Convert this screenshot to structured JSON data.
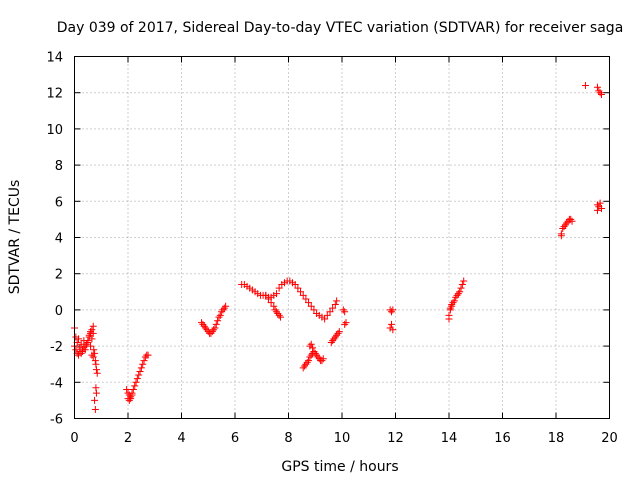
{
  "chart_data": {
    "type": "scatter",
    "title": "Day 039 of 2017, Sidereal Day-to-day VTEC variation (SDTVAR) for receiver saga",
    "xlabel": "GPS time / hours",
    "ylabel": "SDTVAR / TECUs",
    "xlim": [
      0,
      20
    ],
    "ylim": [
      -6,
      14
    ],
    "xticks": [
      0,
      2,
      4,
      6,
      8,
      10,
      12,
      14,
      16,
      18,
      20
    ],
    "yticks": [
      -6,
      -4,
      -2,
      0,
      2,
      4,
      6,
      8,
      10,
      12,
      14
    ],
    "xtick_labels": [
      "0",
      "2",
      "4",
      "6",
      "8",
      "10",
      "12",
      "14",
      "16",
      "18",
      "20"
    ],
    "ytick_labels": [
      "-6",
      "-4",
      "-2",
      "0",
      "2",
      "4",
      "6",
      "8",
      "10",
      "12",
      "14"
    ],
    "grid": true,
    "marker": "+",
    "color": "#ff0000",
    "series": [
      {
        "name": "SDTVAR",
        "x": [
          0.0,
          0.05,
          0.1,
          0.15,
          0.2,
          0.25,
          0.3,
          0.35,
          0.4,
          0.45,
          0.5,
          0.55,
          0.6,
          0.65,
          0.7,
          0.0,
          0.05,
          0.1,
          0.15,
          0.2,
          0.25,
          0.3,
          0.35,
          0.4,
          0.5,
          0.55,
          0.6,
          0.65,
          0.7,
          0.72,
          0.75,
          0.78,
          0.8,
          0.82,
          0.85,
          0.8,
          0.82,
          0.75,
          0.78,
          0.6,
          0.65,
          0.7,
          1.95,
          2.0,
          2.05,
          2.1,
          2.15,
          2.2,
          2.25,
          2.3,
          2.35,
          2.4,
          2.45,
          2.5,
          2.55,
          2.6,
          2.65,
          2.7,
          2.75,
          2.0,
          2.05,
          2.1,
          2.15,
          4.75,
          4.8,
          4.85,
          4.9,
          4.95,
          5.0,
          5.05,
          5.1,
          5.15,
          5.2,
          5.25,
          5.3,
          5.35,
          5.4,
          5.45,
          5.5,
          5.55,
          5.6,
          5.65,
          6.25,
          6.35,
          6.45,
          6.55,
          6.65,
          6.75,
          6.85,
          6.95,
          7.05,
          7.15,
          7.25,
          7.35,
          7.45,
          7.55,
          7.65,
          7.75,
          7.85,
          7.95,
          8.05,
          8.15,
          8.25,
          8.35,
          8.45,
          8.55,
          8.65,
          8.75,
          8.85,
          8.95,
          9.05,
          9.15,
          9.25,
          9.35,
          9.45,
          9.55,
          9.65,
          9.75,
          9.8,
          7.15,
          7.25,
          7.35,
          7.45,
          7.5,
          7.55,
          7.6,
          7.65,
          7.7,
          8.55,
          8.6,
          8.65,
          8.7,
          8.75,
          8.8,
          8.85,
          8.9,
          8.95,
          9.0,
          9.05,
          9.1,
          9.15,
          9.2,
          9.25,
          9.3,
          8.8,
          8.85,
          8.9,
          9.6,
          9.65,
          9.7,
          9.75,
          9.8,
          9.85,
          9.9,
          10.05,
          10.1,
          10.1,
          10.15,
          11.8,
          11.85,
          11.9,
          11.85,
          11.8,
          11.9,
          14.0,
          14.05,
          14.1,
          14.15,
          14.2,
          14.25,
          14.3,
          14.35,
          14.4,
          14.45,
          14.5,
          14.55,
          14.0,
          14.05,
          14.1,
          18.2,
          18.25,
          18.3,
          18.35,
          18.4,
          18.45,
          18.5,
          18.55,
          18.6,
          18.2,
          19.1,
          19.55,
          19.6,
          19.65,
          19.7,
          19.55,
          19.6,
          19.65,
          19.7,
          19.55
        ],
        "y": [
          -1.0,
          -1.5,
          -2.4,
          -2.5,
          -2.3,
          -2.4,
          -2.2,
          -2.1,
          -2.0,
          -1.9,
          -1.7,
          -1.5,
          -1.3,
          -1.1,
          -0.9,
          -2.0,
          -2.2,
          -1.8,
          -1.6,
          -2.1,
          -1.9,
          -2.3,
          -1.7,
          -2.2,
          -1.8,
          -1.4,
          -1.2,
          -2.5,
          -2.6,
          -2.2,
          -2.4,
          -2.8,
          -3.0,
          -3.3,
          -3.5,
          -4.3,
          -4.6,
          -5.0,
          -5.5,
          -2.0,
          -1.6,
          -1.3,
          -4.4,
          -4.6,
          -4.7,
          -4.8,
          -4.6,
          -4.4,
          -4.2,
          -4.0,
          -3.8,
          -3.6,
          -3.4,
          -3.2,
          -3.0,
          -2.8,
          -2.6,
          -2.5,
          -2.5,
          -4.9,
          -5.0,
          -4.9,
          -4.7,
          -0.7,
          -0.8,
          -0.9,
          -1.0,
          -1.1,
          -1.2,
          -1.3,
          -1.3,
          -1.2,
          -1.1,
          -1.0,
          -0.8,
          -0.6,
          -0.4,
          -0.3,
          -0.1,
          0.0,
          0.1,
          0.2,
          1.4,
          1.4,
          1.3,
          1.2,
          1.1,
          1.0,
          0.9,
          0.8,
          0.8,
          0.8,
          0.7,
          0.7,
          0.8,
          0.9,
          1.2,
          1.4,
          1.5,
          1.6,
          1.6,
          1.5,
          1.4,
          1.2,
          1.0,
          0.8,
          0.6,
          0.4,
          0.2,
          0.0,
          -0.2,
          -0.3,
          -0.4,
          -0.5,
          -0.3,
          -0.1,
          0.1,
          0.3,
          0.5,
          0.8,
          0.6,
          0.4,
          0.2,
          0.0,
          -0.1,
          -0.2,
          -0.3,
          -0.4,
          -3.2,
          -3.1,
          -3.0,
          -2.9,
          -2.8,
          -2.6,
          -2.5,
          -2.4,
          -2.3,
          -2.4,
          -2.5,
          -2.6,
          -2.7,
          -2.8,
          -2.8,
          -2.7,
          -2.0,
          -1.9,
          -2.1,
          -1.8,
          -1.7,
          -1.6,
          -1.5,
          -1.4,
          -1.3,
          -1.2,
          0.0,
          -0.1,
          -0.8,
          -0.7,
          0.0,
          -0.1,
          0.0,
          -0.8,
          -1.0,
          -1.1,
          -0.5,
          0.0,
          0.2,
          0.4,
          0.5,
          0.7,
          0.8,
          0.9,
          1.0,
          1.2,
          1.4,
          1.6,
          -0.3,
          0.1,
          0.3,
          4.2,
          4.5,
          4.6,
          4.7,
          4.8,
          4.9,
          5.0,
          5.0,
          4.9,
          4.1,
          12.4,
          12.3,
          12.1,
          12.0,
          11.9,
          5.8,
          5.7,
          5.9,
          5.6,
          5.5
        ]
      }
    ]
  }
}
